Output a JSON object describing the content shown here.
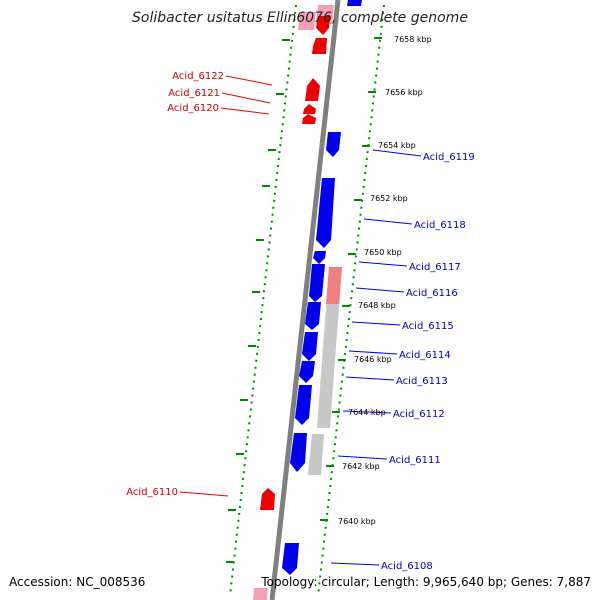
{
  "title": "Solibacter usitatus Ellin6076, complete genome",
  "footer": {
    "accession": "Accession: NC_008536",
    "summary": "Topology: circular; Length: 9,965,640 bp; Genes: 7,887"
  },
  "colors": {
    "forward_cds": "#0000ee",
    "reverse_cds": "#ee0000",
    "pseudo": "#c8c8c8",
    "rna_reverse": "#f4a0b4",
    "rna_forward": "#f08080",
    "backbone": "#808080",
    "ruler": "#008800",
    "label_forward": "#0000bb",
    "label_reverse": "#cc0000"
  },
  "ticks": [
    {
      "kbp": 7658,
      "label": "7658 kbp"
    },
    {
      "kbp": 7656,
      "label": "7656 kbp"
    },
    {
      "kbp": 7654,
      "label": "7654 kbp"
    },
    {
      "kbp": 7652,
      "label": "7652 kbp"
    },
    {
      "kbp": 7650,
      "label": "7650 kbp"
    },
    {
      "kbp": 7648,
      "label": "7648 kbp"
    },
    {
      "kbp": 7646,
      "label": "7646 kbp"
    },
    {
      "kbp": 7644,
      "label": "7644 kbp"
    },
    {
      "kbp": 7642,
      "label": "7642 kbp"
    },
    {
      "kbp": 7640,
      "label": "7640 kbp"
    }
  ],
  "genes": [
    {
      "name": "Acid_6122",
      "strand": "reverse",
      "position_kbp": 7657.2
    },
    {
      "name": "Acid_6121",
      "strand": "reverse",
      "position_kbp": 7656.0
    },
    {
      "name": "Acid_6120",
      "strand": "reverse",
      "position_kbp": 7655.2
    },
    {
      "name": "Acid_6119",
      "strand": "forward",
      "position_kbp": 7653.4
    },
    {
      "name": "Acid_6118",
      "strand": "forward",
      "position_kbp": 7651.2
    },
    {
      "name": "Acid_6117",
      "strand": "forward",
      "position_kbp": 7649.4
    },
    {
      "name": "Acid_6116",
      "strand": "forward",
      "position_kbp": 7648.4
    },
    {
      "name": "Acid_6115",
      "strand": "forward",
      "position_kbp": 7647.3
    },
    {
      "name": "Acid_6114",
      "strand": "forward",
      "position_kbp": 7646.3
    },
    {
      "name": "Acid_6113",
      "strand": "forward",
      "position_kbp": 7645.4
    },
    {
      "name": "Acid_6112",
      "strand": "forward",
      "position_kbp": 7644.0
    },
    {
      "name": "Acid_6111",
      "strand": "forward",
      "position_kbp": 7642.2
    },
    {
      "name": "Acid_6110",
      "strand": "reverse",
      "position_kbp": 7641.0
    },
    {
      "name": "Acid_6108",
      "strand": "forward",
      "position_kbp": 7638.6
    }
  ]
}
